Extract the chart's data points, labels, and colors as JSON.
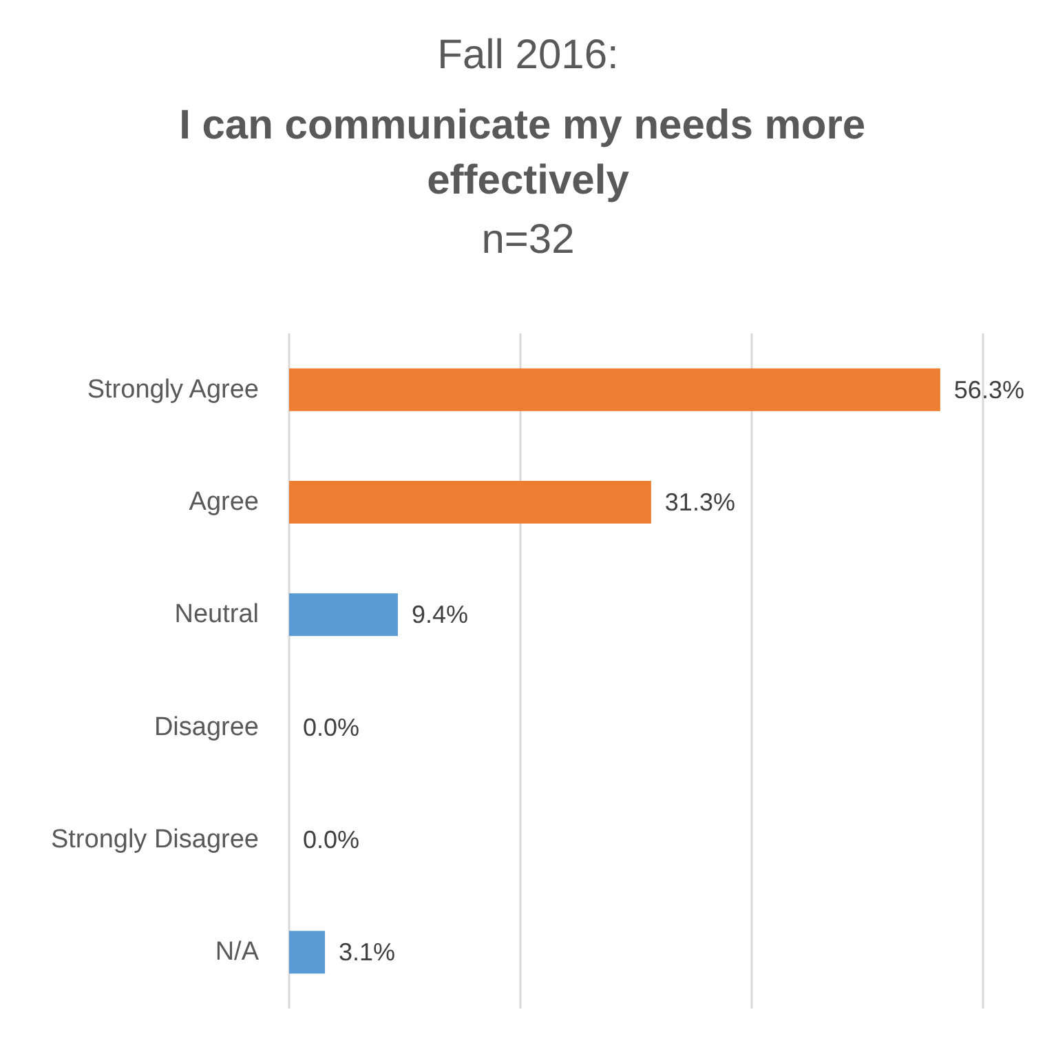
{
  "chart_data": {
    "type": "bar",
    "orientation": "horizontal",
    "annotations": [
      "Fall 2016:"
    ],
    "title": "I can communicate my needs more effectively",
    "subtitle": "n=32",
    "categories": [
      "Strongly Agree",
      "Agree",
      "Neutral",
      "Disagree",
      "Strongly Disagree",
      "N/A"
    ],
    "values": [
      56.3,
      31.3,
      9.4,
      0,
      0,
      3.1
    ],
    "value_labels": [
      "56.3%",
      "31.3%",
      "9.4%",
      "0.0%",
      "0.0%",
      "3.1%"
    ],
    "colors": [
      "#ed7d31",
      "#ed7d31",
      "#5b9bd5",
      "#5b9bd5",
      "#5b9bd5",
      "#5b9bd5"
    ],
    "xlim": [
      0,
      60
    ],
    "xticks": [
      {
        "value": 0,
        "label": null
      },
      {
        "value": 20,
        "label": null
      },
      {
        "value": 40,
        "label": null
      },
      {
        "value": 60,
        "label": null
      }
    ],
    "grid": "x",
    "tick_labels": "y"
  }
}
